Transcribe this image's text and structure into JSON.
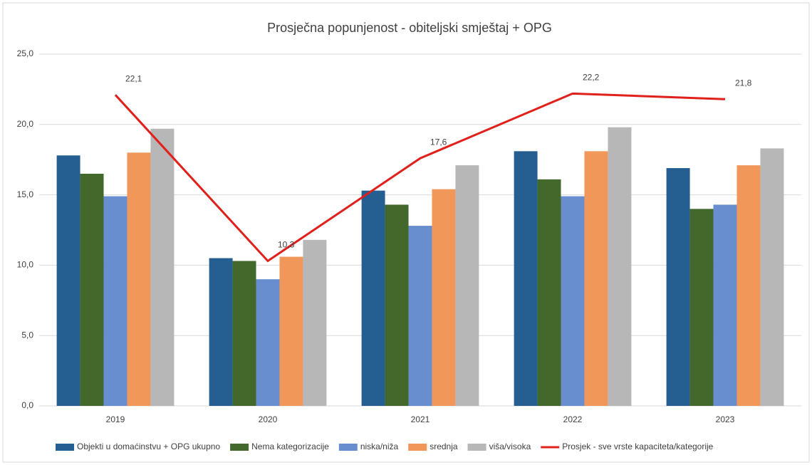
{
  "chart_data": {
    "type": "bar+line",
    "title": "Prosječna popunjenost - obiteljski smještaj + OPG",
    "categories": [
      "2019",
      "2020",
      "2021",
      "2022",
      "2023"
    ],
    "series": [
      {
        "name": "Objekti u domaćinstvu + OPG ukupno",
        "type": "bar",
        "color": "#255e91",
        "values": [
          17.8,
          10.5,
          15.3,
          18.1,
          16.9
        ]
      },
      {
        "name": "Nema kategorizacije",
        "type": "bar",
        "color": "#43682b",
        "values": [
          16.5,
          10.3,
          14.3,
          16.1,
          14.0
        ]
      },
      {
        "name": "niska/niža",
        "type": "bar",
        "color": "#698ed0",
        "values": [
          14.9,
          9.0,
          12.8,
          14.9,
          14.3
        ]
      },
      {
        "name": "srednja",
        "type": "bar",
        "color": "#f1975a",
        "values": [
          18.0,
          10.6,
          15.4,
          18.1,
          17.1
        ]
      },
      {
        "name": "viša/visoka",
        "type": "bar",
        "color": "#b7b7b7",
        "values": [
          19.7,
          11.8,
          17.1,
          19.8,
          18.3
        ]
      },
      {
        "name": "Prosjek - sve vrste kapaciteta/kategorije",
        "type": "line",
        "color": "#e0201b",
        "values": [
          22.1,
          10.3,
          17.6,
          22.2,
          21.8
        ],
        "value_labels": [
          "22,1",
          "10,3",
          "17,6",
          "22,2",
          "21,8"
        ]
      }
    ],
    "ylim": [
      0,
      25
    ],
    "yticks": [
      {
        "value": 0,
        "label": "0,0"
      },
      {
        "value": 5,
        "label": "5,0"
      },
      {
        "value": 10,
        "label": "10,0"
      },
      {
        "value": 15,
        "label": "15,0"
      },
      {
        "value": 20,
        "label": "20,0"
      },
      {
        "value": 25,
        "label": "25,0"
      }
    ],
    "grid": true,
    "legend": "bottom"
  }
}
